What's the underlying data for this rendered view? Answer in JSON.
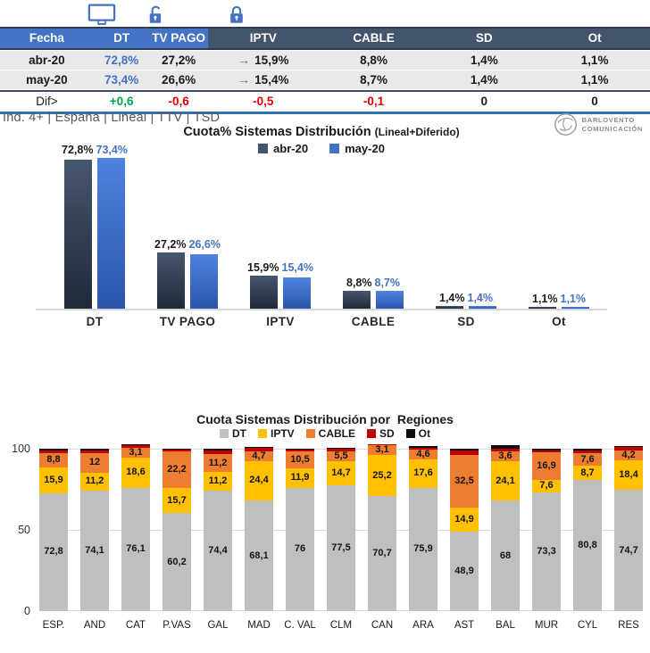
{
  "icons": {
    "tv": "tv-icon",
    "dt": "open-lock-icon",
    "tv_pago": "closed-lock-icon"
  },
  "colors": {
    "accent_blue": "#4472C4",
    "header_dark": "#44546A",
    "positive_green": "#00A550",
    "negative_red": "#E00000",
    "row_gray": "#E9E9E9",
    "rule_blue": "#2E74B5"
  },
  "table": {
    "columns": [
      "Fecha",
      "DT",
      "TV PAGO",
      "IPTV",
      "CABLE",
      "SD",
      "Ot"
    ],
    "rows": [
      {
        "label": "abr-20",
        "dt": "72,8%",
        "tv_pago": "27,2%",
        "arrow": "→",
        "iptv": "15,9%",
        "cable": "8,8%",
        "sd": "1,4%",
        "ot": "1,1%"
      },
      {
        "label": "may-20",
        "dt": "73,4%",
        "tv_pago": "26,6%",
        "arrow": "→",
        "iptv": "15,4%",
        "cable": "8,7%",
        "sd": "1,4%",
        "ot": "1,1%"
      }
    ],
    "diff": {
      "label": "Dif>",
      "dt": "+0,6",
      "tv_pago": "-0,6",
      "iptv": "-0,5",
      "cable": "-0,1",
      "sd": "0",
      "ot": "0"
    }
  },
  "meta_line": "Ind. 4+ | España | Lineal | TTV | TSD",
  "logo": {
    "line1": "BARLOVENTO",
    "line2": "COMUNICACIÓN"
  },
  "chart_data": [
    {
      "type": "bar",
      "title": "Cuota% Sistemas Distribución",
      "title_suffix": "(Lineal+Diferido)",
      "categories": [
        "DT",
        "TV PAGO",
        "IPTV",
        "CABLE",
        "SD",
        "Ot"
      ],
      "series": [
        {
          "name": "abr-20",
          "color": "#44546A",
          "values": [
            72.8,
            27.2,
            15.9,
            8.8,
            1.4,
            1.1
          ],
          "labels": [
            "72,8%",
            "27,2%",
            "15,9%",
            "8,8%",
            "1,4%",
            "1,1%"
          ]
        },
        {
          "name": "may-20",
          "color": "#4472C4",
          "values": [
            73.4,
            26.6,
            15.4,
            8.7,
            1.4,
            1.1
          ],
          "labels": [
            "73,4%",
            "26,6%",
            "15,4%",
            "8,7%",
            "1,4%",
            "1,1%"
          ]
        }
      ],
      "ylim": [
        0,
        80
      ],
      "grid": false,
      "legend_position": "top"
    },
    {
      "type": "bar",
      "stacked": true,
      "title": "Cuota Sistemas Distribución por  Regiones",
      "categories": [
        "ESP.",
        "AND",
        "CAT",
        "P.VAS",
        "GAL",
        "MAD",
        "C. VAL",
        "CLM",
        "CAN",
        "ARA",
        "AST",
        "BAL",
        "MUR",
        "CYL",
        "RES"
      ],
      "series": [
        {
          "name": "DT",
          "color": "#BFBFBF",
          "labels_shown": true,
          "values": [
            72.8,
            74.1,
            76.1,
            60.2,
            74.4,
            68.1,
            76,
            77.5,
            70.7,
            75.9,
            48.9,
            68,
            73.3,
            80.8,
            74.7
          ],
          "labels": [
            "72,8",
            "74,1",
            "76,1",
            "60,2",
            "74,4",
            "68,1",
            "76",
            "77,5",
            "70,7",
            "75,9",
            "48,9",
            "68",
            "73,3",
            "80,8",
            "74,7"
          ]
        },
        {
          "name": "IPTV",
          "color": "#FFC000",
          "labels_shown": true,
          "values": [
            15.9,
            11.2,
            18.6,
            15.7,
            11.2,
            24.4,
            11.9,
            14.7,
            25.2,
            17.6,
            14.9,
            24.1,
            7.6,
            8.7,
            18.4
          ],
          "labels": [
            "15,9",
            "11,2",
            "18,6",
            "15,7",
            "11,2",
            "24,4",
            "11,9",
            "14,7",
            "25,2",
            "17,6",
            "14,9",
            "24,1",
            "7,6",
            "8,7",
            "18,4"
          ]
        },
        {
          "name": "CABLE",
          "color": "#ED7D31",
          "labels_shown": true,
          "values": [
            8.8,
            12,
            3.1,
            22.2,
            11.2,
            4.7,
            10.5,
            5.5,
            3.1,
            4.6,
            32.5,
            3.6,
            16.9,
            7.6,
            4.2
          ],
          "labels": [
            "8,8",
            "12",
            "3,1",
            "22,2",
            "11,2",
            "4,7",
            "10,5",
            "5,5",
            "3,1",
            "4,6",
            "32,5",
            "3,6",
            "16,9",
            "7,6",
            "4,2"
          ]
        },
        {
          "name": "SD",
          "color": "#C00000",
          "labels_shown": false,
          "values": [
            1.4,
            1.7,
            1.4,
            1.2,
            2.0,
            1.8,
            1.0,
            1.5,
            0.6,
            1.2,
            2.7,
            1.8,
            1.4,
            1.9,
            1.7
          ]
        },
        {
          "name": "Ot",
          "color": "#0D0D0D",
          "labels_shown": false,
          "values": [
            1.1,
            1.0,
            0.8,
            0.7,
            1.2,
            1.0,
            0.6,
            0.8,
            0.4,
            0.7,
            1.0,
            2.5,
            0.8,
            1.0,
            1.0
          ]
        }
      ],
      "ylim": [
        0,
        100
      ],
      "yticks": [
        0,
        50,
        100
      ],
      "legend_position": "top"
    }
  ]
}
